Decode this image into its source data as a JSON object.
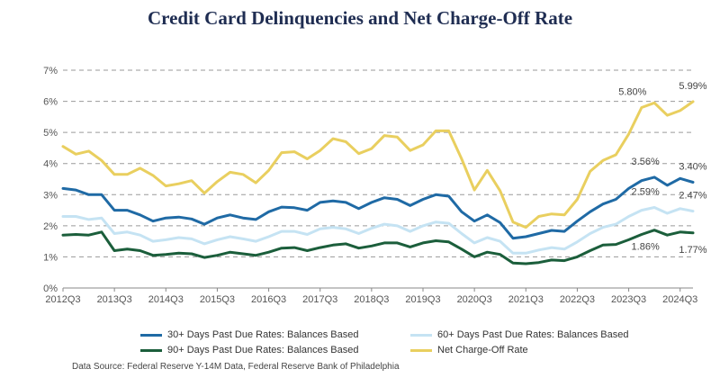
{
  "title": "Credit Card Delinquencies and Net Charge-Off Rate",
  "source": "Data Source: Federal Reserve Y-14M Data, Federal Reserve Bank of Philadelphia",
  "chart_data": {
    "type": "line",
    "title": "Credit Card Delinquencies and Net Charge-Off Rate",
    "xlabel": "",
    "ylabel": "",
    "ylim": [
      0,
      7
    ],
    "yticks": [
      "0%",
      "1%",
      "2%",
      "3%",
      "4%",
      "5%",
      "6%",
      "7%"
    ],
    "xticks": [
      "2012Q3",
      "2013Q3",
      "2014Q3",
      "2015Q3",
      "2016Q3",
      "2017Q3",
      "2018Q3",
      "2019Q3",
      "2020Q3",
      "2021Q3",
      "2022Q3",
      "2023Q3",
      "2024Q3"
    ],
    "grid": "horizontal-dashed",
    "legend": "bottom",
    "categories": [
      "2012Q3",
      "2012Q4",
      "2013Q1",
      "2013Q2",
      "2013Q3",
      "2013Q4",
      "2014Q1",
      "2014Q2",
      "2014Q3",
      "2014Q4",
      "2015Q1",
      "2015Q2",
      "2015Q3",
      "2015Q4",
      "2016Q1",
      "2016Q2",
      "2016Q3",
      "2016Q4",
      "2017Q1",
      "2017Q2",
      "2017Q3",
      "2017Q4",
      "2018Q1",
      "2018Q2",
      "2018Q3",
      "2018Q4",
      "2019Q1",
      "2019Q2",
      "2019Q3",
      "2019Q4",
      "2020Q1",
      "2020Q2",
      "2020Q3",
      "2020Q4",
      "2021Q1",
      "2021Q2",
      "2021Q3",
      "2021Q4",
      "2022Q1",
      "2022Q2",
      "2022Q3",
      "2022Q4",
      "2023Q1",
      "2023Q2",
      "2023Q3",
      "2023Q4",
      "2024Q1",
      "2024Q2",
      "2024Q3",
      "2024Q4"
    ],
    "series": [
      {
        "name": "30+ Days Past Due Rates: Balances Based",
        "color": "#1f6aa5",
        "values": [
          3.2,
          3.15,
          3.0,
          3.0,
          2.5,
          2.5,
          2.35,
          2.15,
          2.25,
          2.28,
          2.22,
          2.05,
          2.25,
          2.35,
          2.25,
          2.2,
          2.45,
          2.6,
          2.58,
          2.5,
          2.75,
          2.8,
          2.75,
          2.55,
          2.75,
          2.9,
          2.85,
          2.65,
          2.85,
          3.0,
          2.95,
          2.45,
          2.15,
          2.35,
          2.1,
          1.6,
          1.65,
          1.75,
          1.85,
          1.82,
          2.15,
          2.45,
          2.7,
          2.85,
          3.2,
          3.45,
          3.56,
          3.3,
          3.52,
          3.4
        ]
      },
      {
        "name": "60+ Days Past Due Rates: Balances Based",
        "color": "#c5e3f3",
        "values": [
          2.3,
          2.3,
          2.2,
          2.25,
          1.75,
          1.8,
          1.7,
          1.5,
          1.55,
          1.62,
          1.58,
          1.42,
          1.55,
          1.65,
          1.58,
          1.5,
          1.65,
          1.82,
          1.82,
          1.72,
          1.9,
          1.95,
          1.9,
          1.75,
          1.92,
          2.05,
          2.0,
          1.82,
          2.0,
          2.12,
          2.08,
          1.75,
          1.45,
          1.62,
          1.5,
          1.12,
          1.12,
          1.22,
          1.3,
          1.25,
          1.48,
          1.75,
          1.95,
          2.05,
          2.3,
          2.5,
          2.59,
          2.4,
          2.55,
          2.47
        ]
      },
      {
        "name": "90+ Days Past Due Rates: Balances Based",
        "color": "#1b5e3b",
        "values": [
          1.7,
          1.72,
          1.7,
          1.8,
          1.2,
          1.25,
          1.2,
          1.05,
          1.08,
          1.12,
          1.1,
          0.98,
          1.05,
          1.15,
          1.1,
          1.05,
          1.15,
          1.28,
          1.3,
          1.2,
          1.3,
          1.38,
          1.42,
          1.28,
          1.35,
          1.45,
          1.45,
          1.32,
          1.45,
          1.52,
          1.48,
          1.25,
          1.0,
          1.15,
          1.08,
          0.8,
          0.78,
          0.82,
          0.9,
          0.88,
          1.0,
          1.2,
          1.38,
          1.4,
          1.55,
          1.72,
          1.86,
          1.7,
          1.8,
          1.77
        ]
      },
      {
        "name": "Net Charge-Off Rate",
        "color": "#e9cf5f",
        "values": [
          4.55,
          4.3,
          4.4,
          4.1,
          3.65,
          3.65,
          3.85,
          3.62,
          3.28,
          3.35,
          3.45,
          3.05,
          3.42,
          3.72,
          3.65,
          3.38,
          3.78,
          4.35,
          4.38,
          4.15,
          4.42,
          4.8,
          4.7,
          4.32,
          4.48,
          4.9,
          4.85,
          4.42,
          4.6,
          5.05,
          5.05,
          4.15,
          3.15,
          3.78,
          3.12,
          2.12,
          1.95,
          2.3,
          2.38,
          2.35,
          2.85,
          3.75,
          4.1,
          4.28,
          4.95,
          5.8,
          5.95,
          5.55,
          5.7,
          5.99
        ]
      }
    ],
    "annotations": [
      {
        "text": "5.80%",
        "series": 3,
        "index": 45
      },
      {
        "text": "5.99%",
        "series": 3,
        "index": 49
      },
      {
        "text": "3.56%",
        "series": 0,
        "index": 46
      },
      {
        "text": "3.40%",
        "series": 0,
        "index": 49
      },
      {
        "text": "2.59%",
        "series": 1,
        "index": 46
      },
      {
        "text": "2.47%",
        "series": 1,
        "index": 49
      },
      {
        "text": "1.86%",
        "series": 2,
        "index": 46
      },
      {
        "text": "1.77%",
        "series": 2,
        "index": 49
      }
    ]
  }
}
